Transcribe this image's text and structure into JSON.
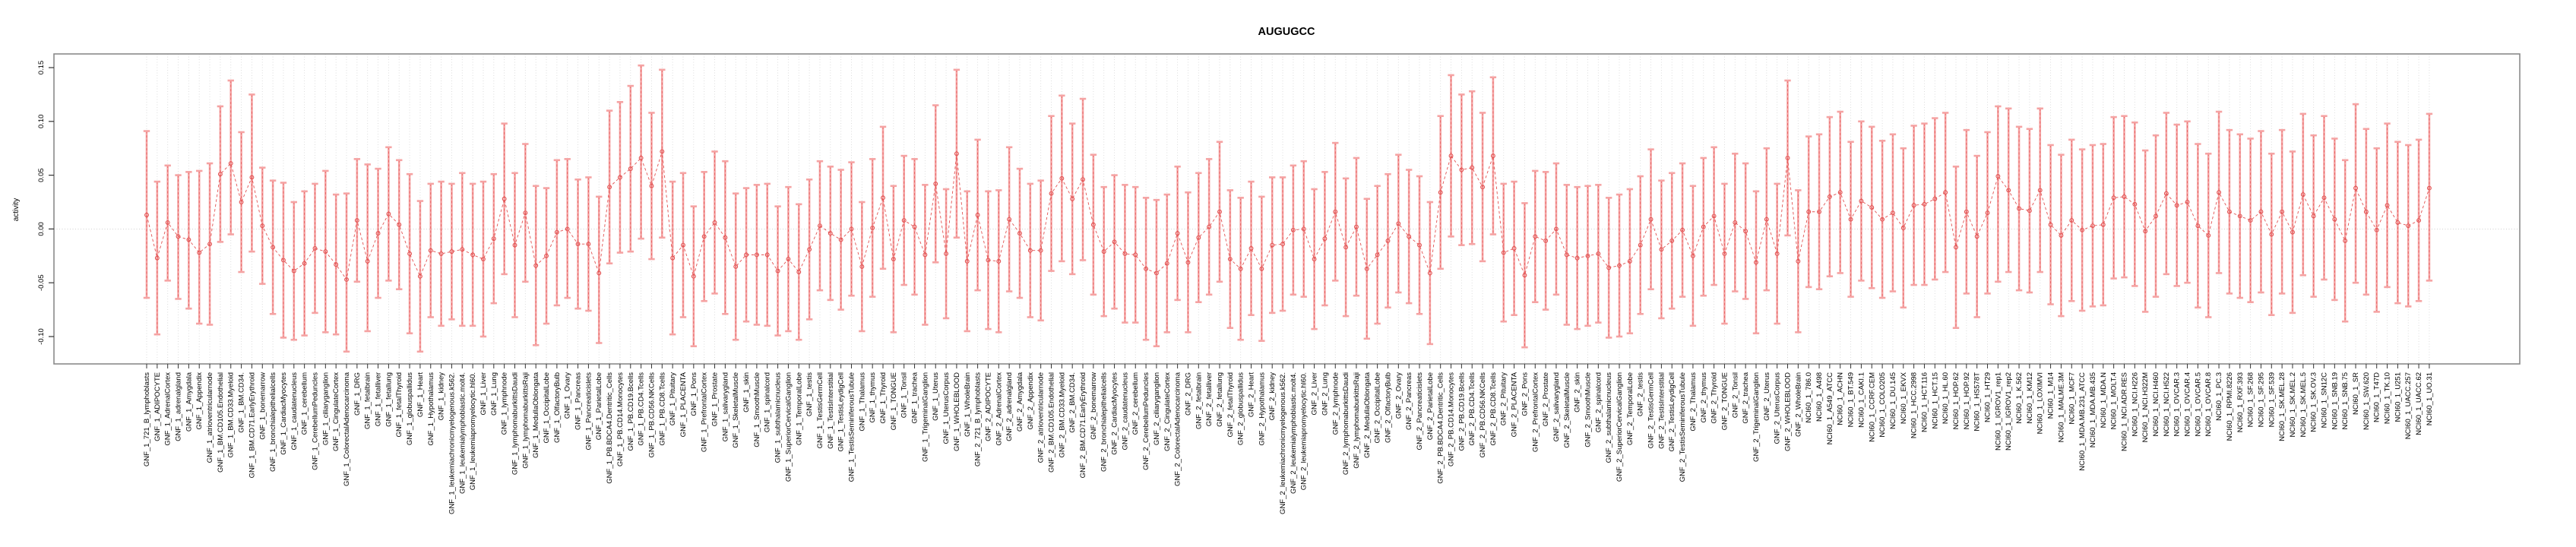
{
  "title": "AUGUGCC",
  "colors": {
    "point": "#e25252",
    "series_line": "#e25252",
    "error_bar": "#f5a3a3",
    "grid": "#d9d9d9",
    "zero_line": "#c9c9c9",
    "box": "#8a8a8a",
    "tick": "#333333",
    "text": "#000000",
    "background": "#ffffff"
  },
  "chart_data": {
    "type": "scatter",
    "title": "AUGUGCC",
    "xlabel": "",
    "ylabel": "activity",
    "ylim": [
      -0.13,
      0.17
    ],
    "yticks": [
      0.15,
      0.1,
      0.05,
      0.0,
      -0.05,
      -0.1
    ],
    "ytick_labels": [
      "0.15",
      "0.10",
      "0.05",
      "0.00",
      "-0.05",
      "-0.10"
    ],
    "grid": "vertical-dotted-per-category",
    "zero_reference_line": true,
    "legend": "none",
    "marker": "open-circle",
    "line_style": "dashed",
    "error_bars": true,
    "categories": [
      "GNF_1_721_B_lymphoblasts",
      "GNF_1_ADIPOCYTE",
      "GNF_1_AdrenalCortex",
      "GNF_1_adrenalgland",
      "GNF_1_Amygdala",
      "GNF_1_Appendix",
      "GNF_1_atrioventricularnode",
      "GNF_1_BM.CD105.Endothelial",
      "GNF_1_BM.CD33.Myeloid",
      "GNF_1_BM.CD34.",
      "GNF_1_BM.CD71.EarlyErythroid",
      "GNF_1_bonemarrow",
      "GNF_1_bronchialepithelialcells",
      "GNF_1_CardiacMyocytes",
      "GNF_1_caudatenucleus",
      "GNF_1_cerebellum",
      "GNF_1_CerebellumPeduncles",
      "GNF_1_ciliaryganglion",
      "GNF_1_CingulateCortex",
      "GNF_1_ColorectalAdenocarcinoma",
      "GNF_1_DRG",
      "GNF_1_fetalbrain",
      "GNF_1_fetalliver",
      "GNF_1_fetallung",
      "GNF_1_fetalThyroid",
      "GNF_1_globuspallidus",
      "GNF_1_Heart",
      "GNF_1_Hypothalamus",
      "GNF_1_kidney",
      "GNF_1_leukemiachronicmyelogenous.k562.",
      "GNF_1_leukemialymphoblastic.molt4.",
      "GNF_1_leukemiapromyelocytic.hl60.",
      "GNF_1_Liver",
      "GNF_1_Lung",
      "GNF_1_lymphnode",
      "GNF_1_lymphomaburkittsDaudi",
      "GNF_1_lymphomaburkittsRaji",
      "GNF_1_MedullaOblongata",
      "GNF_1_OccipitalLobe",
      "GNF_1_OlfactoryBulb",
      "GNF_1_Ovary",
      "GNF_1_Pancreas",
      "GNF_1_Pancreaticislets",
      "GNF_1_ParietalLobe",
      "GNF_1_PB.BDCA4.Dentritic_Cells",
      "GNF_1_PB.CD14.Monocytes",
      "GNF_1_PB.CD19.Bcells",
      "GNF_1_PB.CD4.Tcells",
      "GNF_1_PB.CD56.NKCells",
      "GNF_1_PB.CD8.Tcells",
      "GNF_1_Pituitary",
      "GNF_1_PLACENTA",
      "GNF_1_Pons",
      "GNF_1_PrefrontalCortex",
      "GNF_1_Prostate",
      "GNF_1_salivarygland",
      "GNF_1_SkeletalMuscle",
      "GNF_1_skin",
      "GNF_1_SmoothMuscle",
      "GNF_1_spinalcord",
      "GNF_1_subthalamicnucleus",
      "GNF_1_SuperiorCervicalGanglion",
      "GNF_1_TemporalLobe",
      "GNF_1_testis",
      "GNF_1_TestisGermCell",
      "GNF_1_TestisInterstitial",
      "GNF_1_TestisLeydigCell",
      "GNF_1_TestisSeminiferousTubule",
      "GNF_1_Thalamus",
      "GNF_1_thymus",
      "GNF_1_Thyroid",
      "GNF_1_TONGUE",
      "GNF_1_Tonsil",
      "GNF_1_trachea",
      "GNF_1_TrigeminalGanglion",
      "GNF_1_Uterus",
      "GNF_1_UterusCorpus",
      "GNF_1_WHOLEBLOOD",
      "GNF_1_WholeBrain",
      "GNF_2_721_B_lymphoblasts",
      "GNF_2_ADIPOCYTE",
      "GNF_2_AdrenalCortex",
      "GNF_2_adrenalgland",
      "GNF_2_Amygdala",
      "GNF_2_Appendix",
      "GNF_2_atrioventricularnode",
      "GNF_2_BM.CD105.Endothelial",
      "GNF_2_BM.CD33.Myeloid",
      "GNF_2_BM.CD34.",
      "GNF_2_BM.CD71.EarlyErythroid",
      "GNF_2_bonemarrow",
      "GNF_2_bronchialepithelialcells",
      "GNF_2_CardiacMyocytes",
      "GNF_2_caudatenucleus",
      "GNF_2_cerebellum",
      "GNF_2_CerebellumPeduncles",
      "GNF_2_ciliaryganglion",
      "GNF_2_CingulateCortex",
      "GNF_2_ColorectalAdenocarcinoma",
      "GNF_2_DRG",
      "GNF_2_fetalbrain",
      "GNF_2_fetalliver",
      "GNF_2_fetallung",
      "GNF_2_fetalThyroid",
      "GNF_2_globuspallidus",
      "GNF_2_Heart",
      "GNF_2_Hypothalamus",
      "GNF_2_kidney",
      "GNF_2_leukemiachronicmyelogenous.k562.",
      "GNF_2_leukemialymphoblastic.molt4.",
      "GNF_2_leukemiapromyelocytic.hl60.",
      "GNF_2_Liver",
      "GNF_2_Lung",
      "GNF_2_lymphnode",
      "GNF_2_lymphomaburkittsDaudi",
      "GNF_2_lymphomaburkittsRaji",
      "GNF_2_MedullaOblongata",
      "GNF_2_OccipitalLobe",
      "GNF_2_OlfactoryBulb",
      "GNF_2_Ovary",
      "GNF_2_Pancreas",
      "GNF_2_Pancreaticislets",
      "GNF_2_ParietalLobe",
      "GNF_2_PB.BDCA4.Dentritic_Cells",
      "GNF_2_PB.CD14.Monocytes",
      "GNF_2_PB.CD19.Bcells",
      "GNF_2_PB.CD4.Tcells",
      "GNF_2_PB.CD56.NKCells",
      "GNF_2_PB.CD8.Tcells",
      "GNF_2_Pituitary",
      "GNF_2_PLACENTA",
      "GNF_2_Pons",
      "GNF_2_PrefrontalCortex",
      "GNF_2_Prostate",
      "GNF_2_salivarygland",
      "GNF_2_SkeletalMuscle",
      "GNF_2_skin",
      "GNF_2_SmoothMuscle",
      "GNF_2_spinalcord",
      "GNF_2_subthalamicnucleus",
      "GNF_2_SuperiorCervicalGanglion",
      "GNF_2_TemporalLobe",
      "GNF_2_testis",
      "GNF_2_TestisGermCell",
      "GNF_2_TestisInterstitial",
      "GNF_2_TestisLeydigCell",
      "GNF_2_TestisSeminiferousTubule",
      "GNF_2_Thalamus",
      "GNF_2_thymus",
      "GNF_2_Thyroid",
      "GNF_2_TONGUE",
      "GNF_2_Tonsil",
      "GNF_2_trachea",
      "GNF_2_TrigeminalGanglion",
      "GNF_2_Uterus",
      "GNF_2_UterusCorpus",
      "GNF_2_WHOLEBLOOD",
      "GNF_2_WholeBrain",
      "NCI60_1_786.0",
      "NCI60_1_A498",
      "NCI60_1_A549_ATCC",
      "NCI60_1_ACHN",
      "NCI60_1_BT.549",
      "NCI60_1_CAKI.1",
      "NCI60_1_CCRF.CEM",
      "NCI60_1_COLO205",
      "NCI60_1_DU.145",
      "NCI60_1_EKVX",
      "NCI60_1_HCC.2998",
      "NCI60_1_HCT.116",
      "NCI60_1_HCT.15",
      "NCI60_1_HL.60",
      "NCI60_1_HOP.62",
      "NCI60_1_HOP.92",
      "NCI60_1_HS578T",
      "NCI60_1_HT29",
      "NCI60_1_IGROV1_rep1",
      "NCI60_1_IGROV1_rep2",
      "NCI60_1_K.562",
      "NCI60_1_KM12",
      "NCI60_1_LOXIMVI",
      "NCI60_1_M14",
      "NCI60_1_MALME.3M",
      "NCI60_1_MCF7",
      "NCI60_1_MDA.MB.231_ATCC",
      "NCI60_1_MDA.MB.435",
      "NCI60_1_MDA.N",
      "NCI60_1_MOLT.4",
      "NCI60_1_NCI.ADR.RES",
      "NCI60_1_NCI.H226",
      "NCI60_1_NCI.H322M",
      "NCI60_1_NCI.H460",
      "NCI60_1_NCI.H522",
      "NCI60_1_OVCAR.3",
      "NCI60_1_OVCAR.4",
      "NCI60_1_OVCAR.5",
      "NCI60_1_OVCAR.8",
      "NCI60_1_PC.3",
      "NCI60_1_RPMI.8226",
      "NCI60_1_RXF.393",
      "NCI60_1_SF.268",
      "NCI60_1_SF.295",
      "NCI60_1_SF.539",
      "NCI60_1_SK.MEL.28",
      "NCI60_1_SK.MEL.2",
      "NCI60_1_SK.MEL.5",
      "NCI60_1_SK.OV.3",
      "NCI60_1_SN12C",
      "NCI60_1_SNB.19",
      "NCI60_1_SNB.75",
      "NCI60_1_SR",
      "NCI60_1_SW.620",
      "NCI60_1_T47D",
      "NCI60_1_TK.10",
      "NCI60_1_U251",
      "NCI60_1_UACC.257",
      "NCI60_1_UACC.62",
      "NCI60_1_UO.31"
    ],
    "series": [
      {
        "name": "activity",
        "values": [
          0.013,
          -0.027,
          0.006,
          -0.007,
          -0.01,
          -0.022,
          -0.014,
          0.051,
          0.061,
          0.025,
          0.048,
          0.003,
          -0.017,
          -0.029,
          -0.039,
          -0.032,
          -0.018,
          -0.021,
          -0.033,
          -0.047,
          0.008,
          -0.03,
          -0.004,
          0.014,
          0.004,
          -0.023,
          -0.044,
          -0.02,
          -0.023,
          -0.021,
          -0.019,
          -0.024,
          -0.028,
          -0.009,
          0.028,
          -0.015,
          0.015,
          -0.034,
          -0.025,
          -0.003,
          0.0,
          -0.014,
          -0.014,
          -0.041,
          0.039,
          0.048,
          0.056,
          0.066,
          0.04,
          0.072,
          -0.027,
          -0.015,
          -0.044,
          -0.007,
          0.006,
          -0.008,
          -0.035,
          -0.024,
          -0.024,
          -0.024,
          -0.039,
          -0.028,
          -0.04,
          -0.019,
          0.003,
          -0.004,
          -0.01,
          0.0,
          -0.035,
          0.001,
          0.029,
          -0.028,
          0.008,
          0.002,
          -0.024,
          0.042,
          -0.023,
          0.07,
          -0.03,
          0.013,
          -0.029,
          -0.03,
          0.009,
          -0.004,
          -0.02,
          -0.02,
          0.033,
          0.047,
          0.028,
          0.046,
          0.004,
          -0.021,
          -0.012,
          -0.023,
          -0.024,
          -0.037,
          -0.041,
          -0.032,
          -0.004,
          -0.031,
          -0.008,
          0.002,
          0.016,
          -0.028,
          -0.037,
          -0.018,
          -0.037,
          -0.015,
          -0.014,
          -0.001,
          0.0,
          -0.028,
          -0.009,
          0.016,
          -0.017,
          0.002,
          -0.037,
          -0.024,
          -0.011,
          0.005,
          -0.007,
          -0.015,
          -0.041,
          0.034,
          0.068,
          0.055,
          0.057,
          0.039,
          0.068,
          -0.022,
          -0.018,
          -0.043,
          -0.007,
          -0.011,
          0.0,
          -0.024,
          -0.027,
          -0.025,
          -0.023,
          -0.036,
          -0.034,
          -0.03,
          -0.015,
          0.009,
          -0.019,
          -0.011,
          -0.001,
          -0.025,
          0.002,
          0.012,
          -0.023,
          0.006,
          -0.002,
          -0.031,
          0.009,
          -0.023,
          0.066,
          -0.03,
          0.016,
          0.016,
          0.03,
          0.034,
          0.009,
          0.026,
          0.02,
          0.009,
          0.015,
          0.001,
          0.022,
          0.023,
          0.028,
          0.034,
          -0.017,
          0.016,
          -0.007,
          0.015,
          0.049,
          0.036,
          0.019,
          0.017,
          0.036,
          0.004,
          -0.006,
          0.008,
          -0.001,
          0.003,
          0.004,
          0.029,
          0.03,
          0.023,
          -0.002,
          0.012,
          0.033,
          0.022,
          0.025,
          0.003,
          -0.006,
          0.034,
          0.016,
          0.012,
          0.008,
          0.016,
          -0.005,
          0.016,
          -0.003,
          0.032,
          0.012,
          0.029,
          0.009,
          -0.011,
          0.038,
          0.016,
          -0.001,
          0.022,
          0.006,
          0.003,
          0.008,
          0.038
        ],
        "lower": [
          -0.064,
          -0.098,
          -0.048,
          -0.065,
          -0.074,
          -0.088,
          -0.089,
          -0.012,
          -0.005,
          -0.04,
          -0.021,
          -0.051,
          -0.079,
          -0.101,
          -0.103,
          -0.099,
          -0.078,
          -0.096,
          -0.098,
          -0.114,
          -0.049,
          -0.095,
          -0.064,
          -0.048,
          -0.056,
          -0.097,
          -0.114,
          -0.082,
          -0.09,
          -0.084,
          -0.09,
          -0.09,
          -0.1,
          -0.069,
          -0.042,
          -0.082,
          -0.049,
          -0.108,
          -0.088,
          -0.071,
          -0.064,
          -0.074,
          -0.076,
          -0.106,
          -0.032,
          -0.022,
          -0.021,
          -0.009,
          -0.028,
          -0.008,
          -0.098,
          -0.082,
          -0.109,
          -0.067,
          -0.06,
          -0.079,
          -0.103,
          -0.086,
          -0.089,
          -0.09,
          -0.099,
          -0.095,
          -0.103,
          -0.084,
          -0.057,
          -0.066,
          -0.075,
          -0.062,
          -0.095,
          -0.063,
          -0.037,
          -0.096,
          -0.052,
          -0.061,
          -0.089,
          -0.031,
          -0.083,
          -0.008,
          -0.095,
          -0.057,
          -0.093,
          -0.096,
          -0.058,
          -0.064,
          -0.082,
          -0.085,
          -0.039,
          -0.03,
          -0.042,
          -0.029,
          -0.061,
          -0.081,
          -0.074,
          -0.087,
          -0.087,
          -0.103,
          -0.109,
          -0.096,
          -0.066,
          -0.096,
          -0.068,
          -0.061,
          -0.049,
          -0.092,
          -0.103,
          -0.08,
          -0.104,
          -0.078,
          -0.076,
          -0.061,
          -0.063,
          -0.093,
          -0.071,
          -0.048,
          -0.081,
          -0.062,
          -0.102,
          -0.088,
          -0.073,
          -0.059,
          -0.069,
          -0.079,
          -0.107,
          -0.037,
          -0.007,
          -0.015,
          -0.014,
          -0.03,
          -0.005,
          -0.086,
          -0.08,
          -0.11,
          -0.068,
          -0.075,
          -0.061,
          -0.089,
          -0.093,
          -0.09,
          -0.087,
          -0.101,
          -0.1,
          -0.097,
          -0.079,
          -0.056,
          -0.083,
          -0.074,
          -0.063,
          -0.09,
          -0.062,
          -0.052,
          -0.088,
          -0.058,
          -0.065,
          -0.097,
          -0.057,
          -0.088,
          -0.006,
          -0.096,
          -0.054,
          -0.056,
          -0.044,
          -0.041,
          -0.063,
          -0.048,
          -0.055,
          -0.064,
          -0.058,
          -0.073,
          -0.052,
          -0.052,
          -0.047,
          -0.04,
          -0.092,
          -0.06,
          -0.082,
          -0.06,
          -0.049,
          -0.04,
          -0.057,
          -0.059,
          -0.04,
          -0.07,
          -0.081,
          -0.067,
          -0.076,
          -0.072,
          -0.071,
          -0.046,
          -0.045,
          -0.053,
          -0.077,
          -0.063,
          -0.042,
          -0.053,
          -0.05,
          -0.073,
          -0.082,
          -0.041,
          -0.06,
          -0.064,
          -0.068,
          -0.059,
          -0.08,
          -0.06,
          -0.078,
          -0.043,
          -0.063,
          -0.047,
          -0.066,
          -0.086,
          -0.05,
          -0.061,
          -0.077,
          -0.054,
          -0.069,
          -0.072,
          -0.067,
          -0.048
        ],
        "upper": [
          0.091,
          0.044,
          0.059,
          0.05,
          0.053,
          0.054,
          0.061,
          0.114,
          0.138,
          0.09,
          0.125,
          0.057,
          0.045,
          0.043,
          0.025,
          0.035,
          0.042,
          0.054,
          0.032,
          0.033,
          0.065,
          0.06,
          0.056,
          0.076,
          0.064,
          0.051,
          0.026,
          0.042,
          0.044,
          0.042,
          0.052,
          0.042,
          0.044,
          0.051,
          0.098,
          0.052,
          0.079,
          0.04,
          0.038,
          0.064,
          0.065,
          0.046,
          0.048,
          0.03,
          0.11,
          0.118,
          0.133,
          0.152,
          0.108,
          0.148,
          0.044,
          0.052,
          0.021,
          0.053,
          0.072,
          0.063,
          0.033,
          0.038,
          0.041,
          0.042,
          0.021,
          0.039,
          0.023,
          0.046,
          0.063,
          0.058,
          0.055,
          0.062,
          0.025,
          0.065,
          0.095,
          0.04,
          0.068,
          0.065,
          0.041,
          0.115,
          0.037,
          0.148,
          0.035,
          0.083,
          0.035,
          0.036,
          0.076,
          0.056,
          0.042,
          0.045,
          0.105,
          0.124,
          0.098,
          0.121,
          0.069,
          0.039,
          0.05,
          0.041,
          0.039,
          0.029,
          0.027,
          0.032,
          0.058,
          0.034,
          0.052,
          0.065,
          0.081,
          0.036,
          0.029,
          0.044,
          0.03,
          0.048,
          0.048,
          0.059,
          0.063,
          0.037,
          0.053,
          0.08,
          0.047,
          0.066,
          0.028,
          0.04,
          0.051,
          0.069,
          0.055,
          0.049,
          0.025,
          0.105,
          0.143,
          0.125,
          0.128,
          0.108,
          0.141,
          0.042,
          0.044,
          0.024,
          0.054,
          0.053,
          0.061,
          0.041,
          0.039,
          0.04,
          0.041,
          0.029,
          0.032,
          0.037,
          0.049,
          0.074,
          0.045,
          0.052,
          0.061,
          0.04,
          0.066,
          0.076,
          0.042,
          0.07,
          0.061,
          0.035,
          0.075,
          0.042,
          0.138,
          0.036,
          0.086,
          0.088,
          0.104,
          0.109,
          0.081,
          0.1,
          0.095,
          0.082,
          0.088,
          0.075,
          0.096,
          0.098,
          0.103,
          0.108,
          0.058,
          0.092,
          0.068,
          0.09,
          0.114,
          0.112,
          0.095,
          0.093,
          0.112,
          0.078,
          0.069,
          0.083,
          0.074,
          0.078,
          0.079,
          0.104,
          0.105,
          0.099,
          0.073,
          0.087,
          0.108,
          0.097,
          0.1,
          0.079,
          0.07,
          0.109,
          0.092,
          0.088,
          0.084,
          0.091,
          0.07,
          0.092,
          0.072,
          0.107,
          0.087,
          0.105,
          0.084,
          0.064,
          0.116,
          0.093,
          0.075,
          0.098,
          0.081,
          0.078,
          0.083,
          0.107
        ]
      }
    ]
  }
}
